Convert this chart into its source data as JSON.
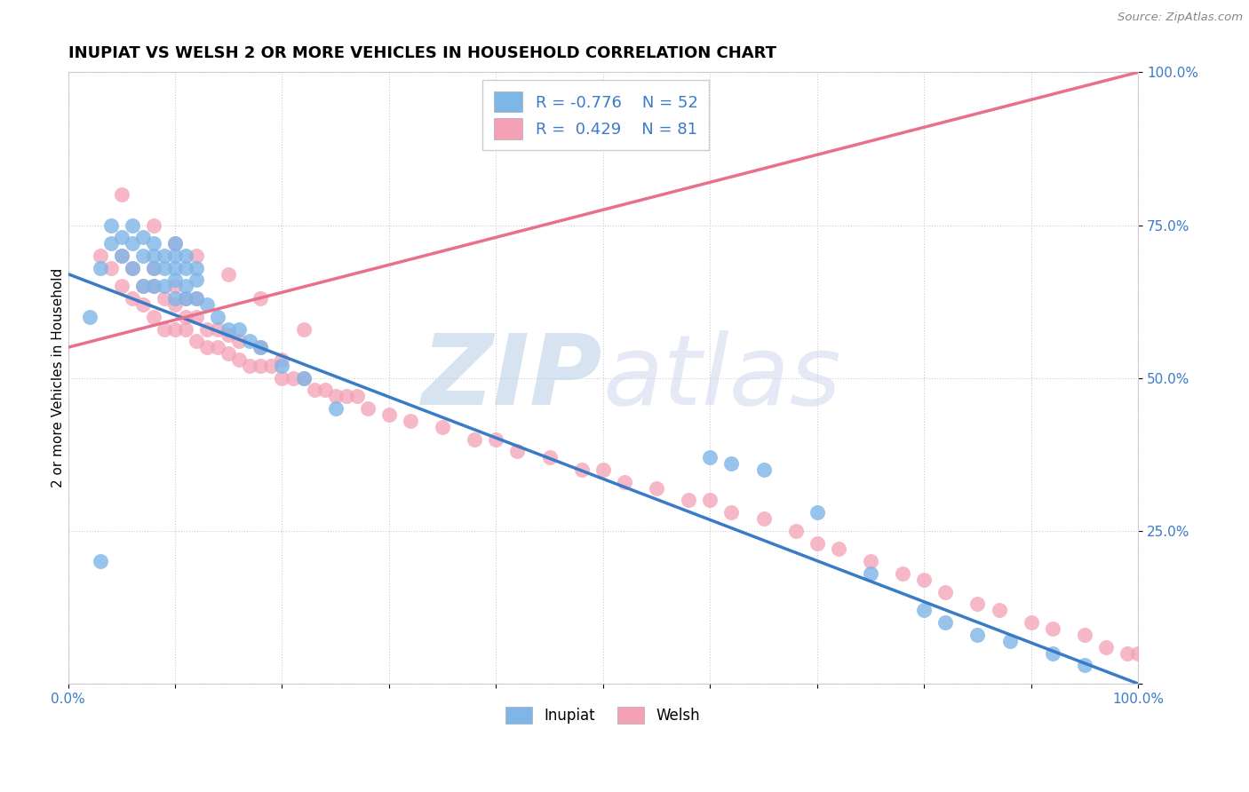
{
  "title": "INUPIAT VS WELSH 2 OR MORE VEHICLES IN HOUSEHOLD CORRELATION CHART",
  "source": "Source: ZipAtlas.com",
  "ylabel": "2 or more Vehicles in Household",
  "xlim": [
    0,
    100
  ],
  "ylim": [
    0,
    100
  ],
  "legend_r_inupiat": "-0.776",
  "legend_n_inupiat": "52",
  "legend_r_welsh": "0.429",
  "legend_n_welsh": "81",
  "inupiat_color": "#7EB6E8",
  "welsh_color": "#F4A0B5",
  "inupiat_line_color": "#3A7BC8",
  "welsh_line_color": "#E8708A",
  "watermark_zip": "ZIP",
  "watermark_atlas": "atlas",
  "watermark_color": "#C8D8F0",
  "title_fontsize": 13,
  "inupiat_x": [
    2,
    3,
    4,
    4,
    5,
    5,
    6,
    6,
    6,
    7,
    7,
    7,
    8,
    8,
    8,
    8,
    9,
    9,
    9,
    10,
    10,
    10,
    10,
    10,
    11,
    11,
    11,
    11,
    12,
    12,
    12,
    13,
    14,
    15,
    16,
    17,
    18,
    20,
    22,
    25,
    3,
    60,
    62,
    65,
    70,
    75,
    80,
    82,
    85,
    88,
    92,
    95
  ],
  "inupiat_y": [
    60,
    68,
    72,
    75,
    70,
    73,
    68,
    72,
    75,
    65,
    70,
    73,
    65,
    68,
    70,
    72,
    65,
    68,
    70,
    63,
    66,
    68,
    70,
    72,
    63,
    65,
    68,
    70,
    63,
    66,
    68,
    62,
    60,
    58,
    58,
    56,
    55,
    52,
    50,
    45,
    20,
    37,
    36,
    35,
    28,
    18,
    12,
    10,
    8,
    7,
    5,
    3
  ],
  "welsh_x": [
    3,
    4,
    5,
    5,
    6,
    6,
    7,
    7,
    8,
    8,
    8,
    9,
    9,
    10,
    10,
    10,
    11,
    11,
    11,
    12,
    12,
    12,
    13,
    13,
    14,
    14,
    15,
    15,
    16,
    16,
    17,
    18,
    18,
    19,
    20,
    20,
    21,
    22,
    23,
    24,
    25,
    26,
    27,
    28,
    30,
    32,
    35,
    38,
    40,
    42,
    45,
    48,
    50,
    52,
    55,
    58,
    60,
    62,
    65,
    68,
    70,
    72,
    75,
    78,
    80,
    82,
    85,
    87,
    90,
    92,
    95,
    97,
    99,
    100,
    5,
    8,
    10,
    12,
    15,
    18,
    22
  ],
  "welsh_y": [
    70,
    68,
    65,
    70,
    63,
    68,
    62,
    65,
    60,
    65,
    68,
    58,
    63,
    58,
    62,
    65,
    58,
    60,
    63,
    56,
    60,
    63,
    55,
    58,
    55,
    58,
    54,
    57,
    53,
    56,
    52,
    52,
    55,
    52,
    50,
    53,
    50,
    50,
    48,
    48,
    47,
    47,
    47,
    45,
    44,
    43,
    42,
    40,
    40,
    38,
    37,
    35,
    35,
    33,
    32,
    30,
    30,
    28,
    27,
    25,
    23,
    22,
    20,
    18,
    17,
    15,
    13,
    12,
    10,
    9,
    8,
    6,
    5,
    5,
    80,
    75,
    72,
    70,
    67,
    63,
    58
  ],
  "inupiat_line_x": [
    0,
    100
  ],
  "inupiat_line_y": [
    67,
    0
  ],
  "welsh_line_x": [
    0,
    100
  ],
  "welsh_line_y": [
    55,
    100
  ]
}
